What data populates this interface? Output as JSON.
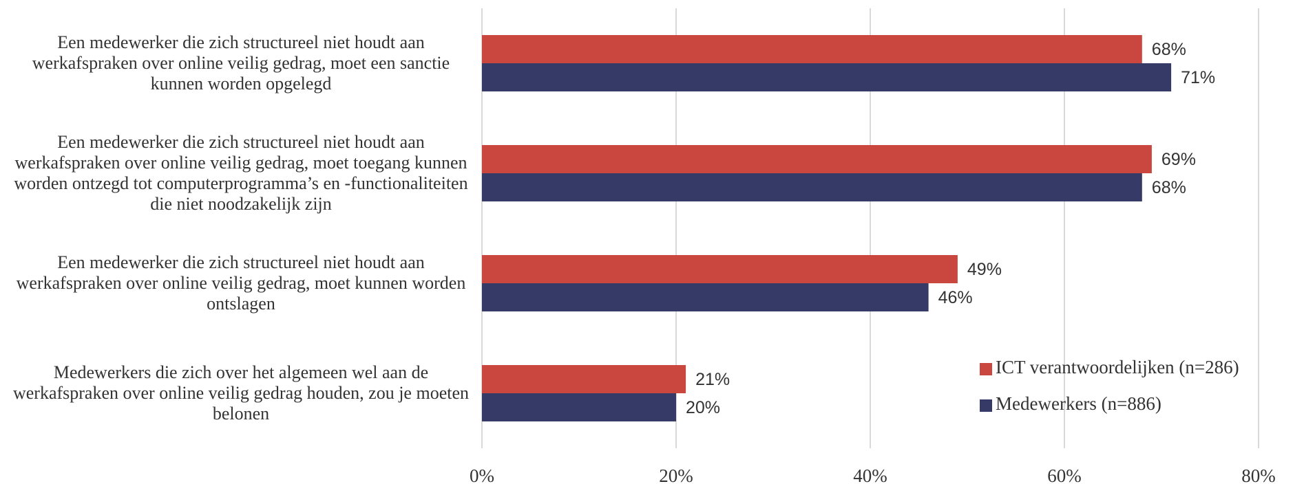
{
  "chart_data": {
    "type": "bar",
    "orientation": "horizontal",
    "categories": [
      "Een medewerker die zich structureel niet houdt aan werkafspraken over online veilig gedrag, moet een sanctie kunnen worden opgelegd",
      "Een medewerker die zich structureel niet houdt aan werkafspraken over online veilig gedrag, moet toegang kunnen worden ontzegd tot computerprogramma’s en -functionaliteiten die niet noodzakelijk zijn",
      "Een medewerker die zich structureel niet houdt aan werkafspraken over online veilig gedrag, moet kunnen worden ontslagen",
      "Medewerkers die zich over het algemeen wel aan de werkafspraken over online veilig gedrag houden, zou je moeten belonen"
    ],
    "series": [
      {
        "name": "ICT verantwoordelijken (n=286)",
        "color": "#c9473e",
        "values": [
          68,
          69,
          49,
          21
        ],
        "value_labels": [
          "68%",
          "69%",
          "49%",
          "21%"
        ]
      },
      {
        "name": "Medewerkers (n=886)",
        "color": "#363a66",
        "values": [
          71,
          68,
          46,
          20
        ],
        "value_labels": [
          "71%",
          "68%",
          "46%",
          "20%"
        ]
      }
    ],
    "xlim": [
      0,
      80
    ],
    "xticks": [
      {
        "value": 0,
        "label": "0%"
      },
      {
        "value": 20,
        "label": "20%"
      },
      {
        "value": 40,
        "label": "40%"
      },
      {
        "value": 60,
        "label": "60%"
      },
      {
        "value": 80,
        "label": "80%"
      }
    ],
    "grid": true,
    "legend": "lower right"
  }
}
